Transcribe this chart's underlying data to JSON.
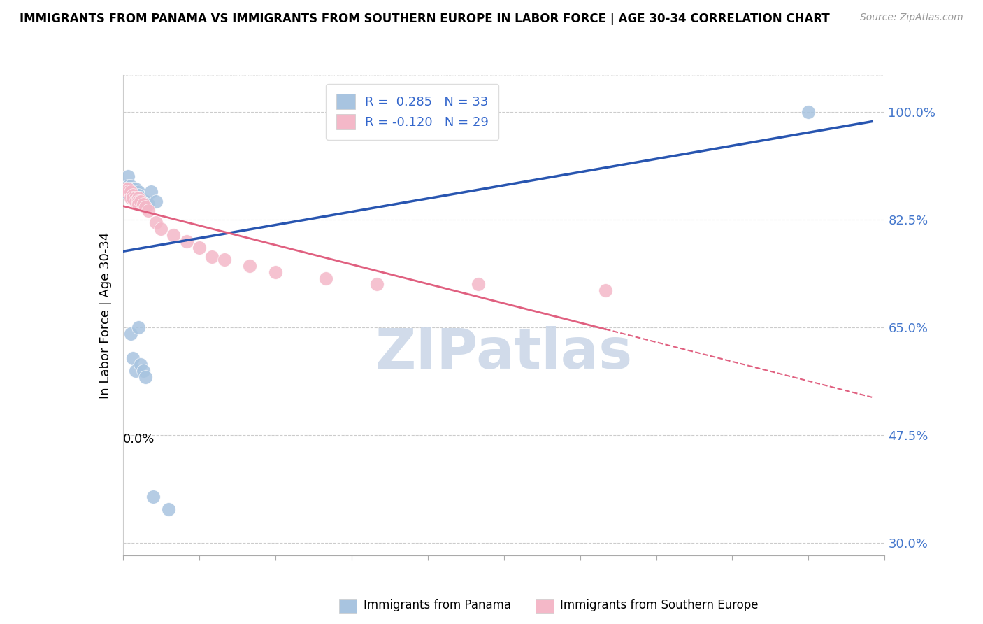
{
  "title": "IMMIGRANTS FROM PANAMA VS IMMIGRANTS FROM SOUTHERN EUROPE IN LABOR FORCE | AGE 30-34 CORRELATION CHART",
  "source": "Source: ZipAtlas.com",
  "ylabel": "In Labor Force | Age 30-34",
  "xlim": [
    0.0,
    0.3
  ],
  "ylim": [
    0.28,
    1.06
  ],
  "ytick_positions": [
    0.3,
    0.475,
    0.65,
    0.825,
    1.0
  ],
  "ytick_labels": [
    "30.0%",
    "47.5%",
    "65.0%",
    "82.5%",
    "100.0%"
  ],
  "panama_x": [
    0.001,
    0.002,
    0.002,
    0.003,
    0.003,
    0.003,
    0.004,
    0.004,
    0.005,
    0.005,
    0.005,
    0.006,
    0.006,
    0.006,
    0.006,
    0.007,
    0.007,
    0.008,
    0.009,
    0.009,
    0.01,
    0.011,
    0.013,
    0.003,
    0.004,
    0.005,
    0.006,
    0.007,
    0.008,
    0.009,
    0.012,
    0.018,
    0.27
  ],
  "panama_y": [
    0.87,
    0.895,
    0.88,
    0.88,
    0.875,
    0.87,
    0.875,
    0.87,
    0.875,
    0.87,
    0.865,
    0.87,
    0.865,
    0.86,
    0.855,
    0.86,
    0.855,
    0.855,
    0.855,
    0.85,
    0.85,
    0.87,
    0.855,
    0.64,
    0.6,
    0.58,
    0.65,
    0.59,
    0.58,
    0.57,
    0.375,
    0.355,
    1.0
  ],
  "southern_x": [
    0.001,
    0.002,
    0.002,
    0.003,
    0.003,
    0.004,
    0.004,
    0.005,
    0.005,
    0.006,
    0.006,
    0.006,
    0.007,
    0.008,
    0.009,
    0.01,
    0.013,
    0.015,
    0.02,
    0.025,
    0.03,
    0.035,
    0.04,
    0.05,
    0.06,
    0.08,
    0.1,
    0.14,
    0.19
  ],
  "southern_y": [
    0.875,
    0.875,
    0.87,
    0.87,
    0.86,
    0.865,
    0.86,
    0.86,
    0.855,
    0.86,
    0.855,
    0.85,
    0.855,
    0.85,
    0.845,
    0.84,
    0.82,
    0.81,
    0.8,
    0.79,
    0.78,
    0.765,
    0.76,
    0.75,
    0.74,
    0.73,
    0.72,
    0.72,
    0.71
  ],
  "panama_color": "#a8c4e0",
  "southern_color": "#f4b8c8",
  "panama_line_color": "#2855b0",
  "southern_line_color": "#e06080",
  "panama_R": 0.285,
  "panama_N": 33,
  "southern_R": -0.12,
  "southern_N": 29,
  "background_color": "#ffffff",
  "grid_color": "#cccccc",
  "watermark_color": "#ccd8e8"
}
